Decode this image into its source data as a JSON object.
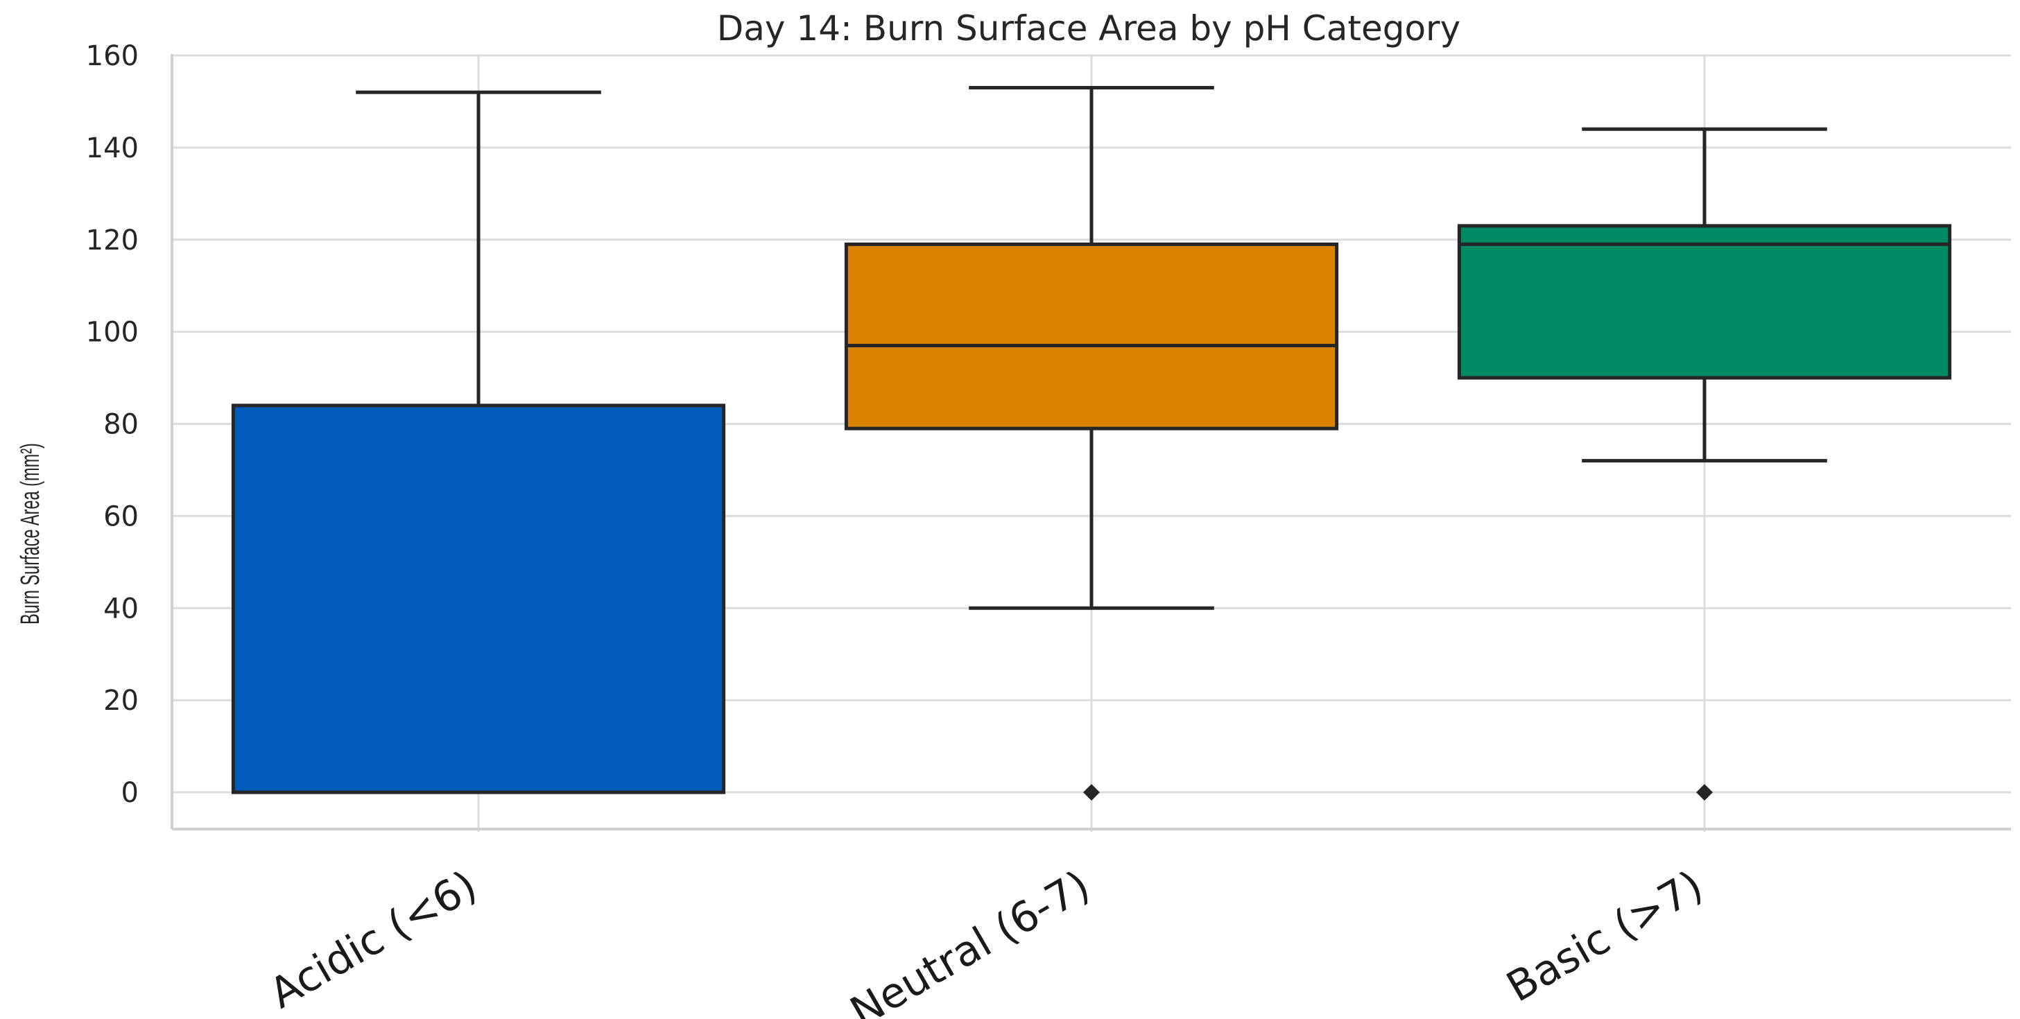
{
  "chart_data": {
    "type": "box",
    "title": "Day 14: Burn Surface Area by pH Category",
    "xlabel": "",
    "ylabel": "Burn Surface Area (mm²)",
    "ylim": [
      -8,
      160
    ],
    "yticks": [
      0,
      20,
      40,
      60,
      80,
      100,
      120,
      140,
      160
    ],
    "grid": true,
    "categories": [
      "Acidic (<6)",
      "Neutral (6-7)",
      "Basic (>7)"
    ],
    "boxes": [
      {
        "category": "Acidic (<6)",
        "whisker_low": 0,
        "q1": 0,
        "median": 0,
        "q3": 84,
        "whisker_high": 152,
        "outliers": [],
        "color": "#005bbb"
      },
      {
        "category": "Neutral (6-7)",
        "whisker_low": 40,
        "q1": 79,
        "median": 97,
        "q3": 119,
        "whisker_high": 153,
        "outliers": [
          0
        ],
        "color": "#d98300"
      },
      {
        "category": "Basic (>7)",
        "whisker_low": 72,
        "q1": 90,
        "median": 119,
        "q3": 123,
        "whisker_high": 144,
        "outliers": [
          0
        ],
        "color": "#008a66"
      }
    ]
  }
}
